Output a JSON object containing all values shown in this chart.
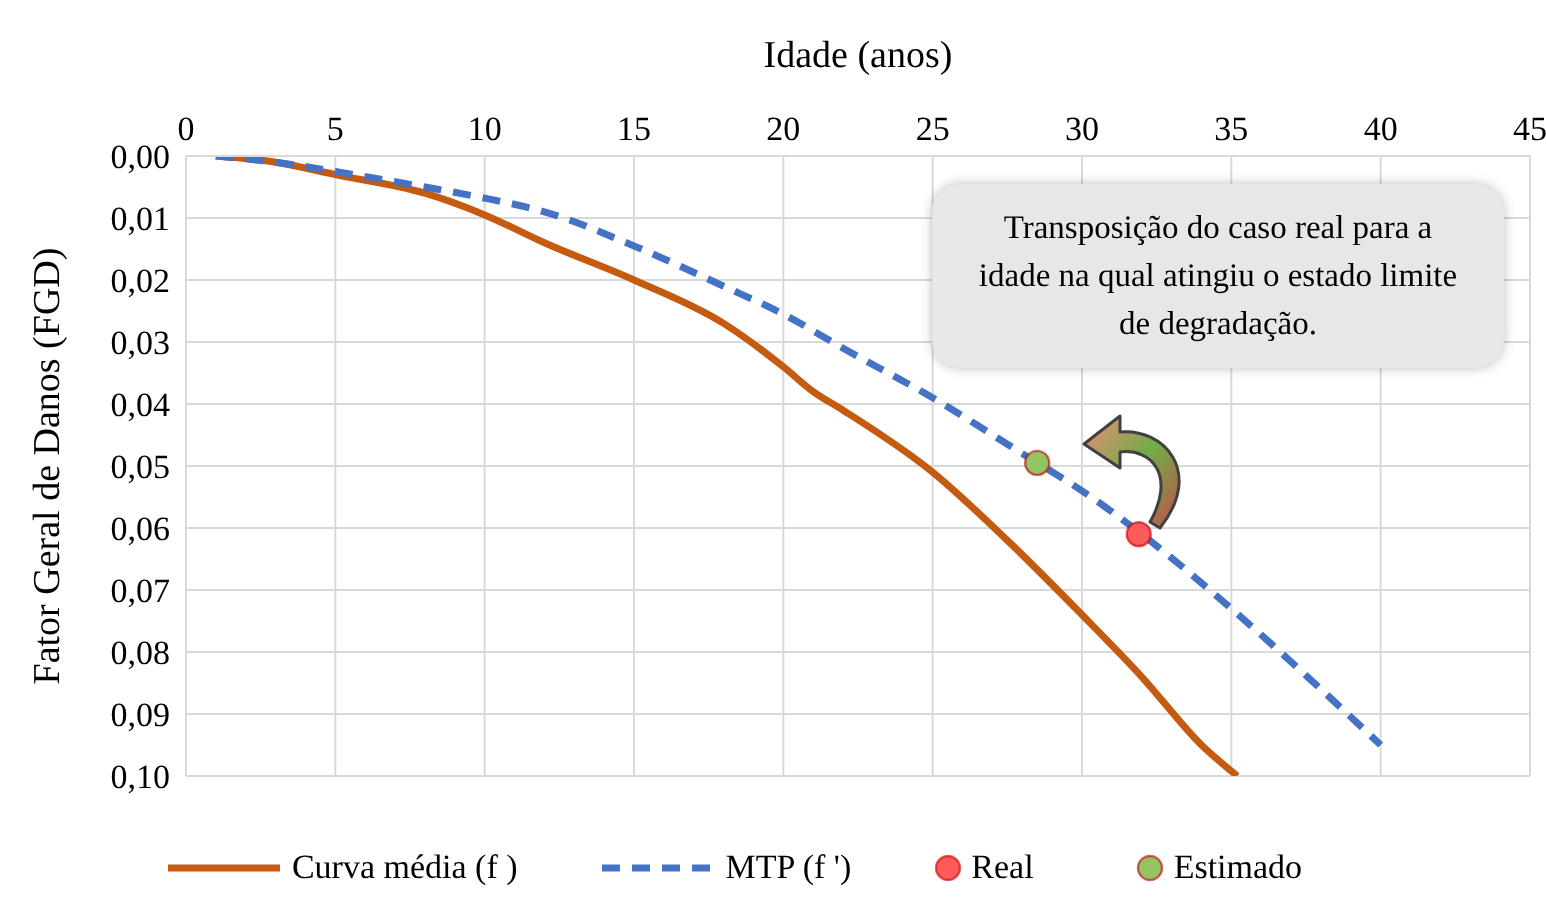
{
  "chart_data": {
    "type": "line",
    "xlabel": "Idade (anos)",
    "ylabel": "Fator Geral de Danos (FGD)",
    "xlim": [
      0,
      45
    ],
    "xticks": [
      0,
      5,
      10,
      15,
      20,
      25,
      30,
      35,
      40,
      45
    ],
    "ylim": [
      0.1,
      0
    ],
    "yticks": [
      {
        "value": 0,
        "label": "0,00"
      },
      {
        "value": 0.01,
        "label": "0,01"
      },
      {
        "value": 0.02,
        "label": "0,02"
      },
      {
        "value": 0.03,
        "label": "0,03"
      },
      {
        "value": 0.04,
        "label": "0,04"
      },
      {
        "value": 0.05,
        "label": "0,05"
      },
      {
        "value": 0.06,
        "label": "0,06"
      },
      {
        "value": 0.07,
        "label": "0,07"
      },
      {
        "value": 0.08,
        "label": "0,08"
      },
      {
        "value": 0.09,
        "label": "0,09"
      },
      {
        "value": 0.1,
        "label": "0,10"
      }
    ],
    "grid": true,
    "legend": "bottom",
    "annotations": [
      "Transposição do caso real para a idade na qual atingiu o estado limite de degradação."
    ],
    "series": [
      {
        "name": "Curva média (f )",
        "color": "#c55a11",
        "line_style": "solid",
        "x": [
          1,
          3,
          5,
          8,
          10,
          12,
          15,
          18,
          20,
          21,
          22,
          25,
          27.5,
          30,
          32,
          34,
          35.2
        ],
        "values": [
          0,
          0.001,
          0.003,
          0.006,
          0.0095,
          0.014,
          0.02,
          0.027,
          0.034,
          0.038,
          0.041,
          0.051,
          0.062,
          0.074,
          0.084,
          0.095,
          0.1
        ]
      },
      {
        "name": "MTP (f ')",
        "color": "#4472c4",
        "line_style": "dashed",
        "x": [
          1,
          3,
          5,
          8,
          10,
          12,
          15,
          18,
          20,
          22,
          25,
          28,
          30,
          32,
          35,
          38,
          40
        ],
        "values": [
          0,
          0.001,
          0.0025,
          0.005,
          0.0068,
          0.009,
          0.0145,
          0.021,
          0.0255,
          0.031,
          0.039,
          0.048,
          0.054,
          0.061,
          0.073,
          0.086,
          0.095
        ]
      },
      {
        "type": "scatter",
        "name": "Real",
        "color": "#ff5b5b",
        "marker": "circle",
        "x": [
          31.9
        ],
        "values": [
          0.061
        ]
      },
      {
        "type": "scatter",
        "name": "Estimado",
        "color": "#93c567",
        "marker": "circle",
        "x": [
          28.5
        ],
        "values": [
          0.0495
        ]
      }
    ]
  }
}
